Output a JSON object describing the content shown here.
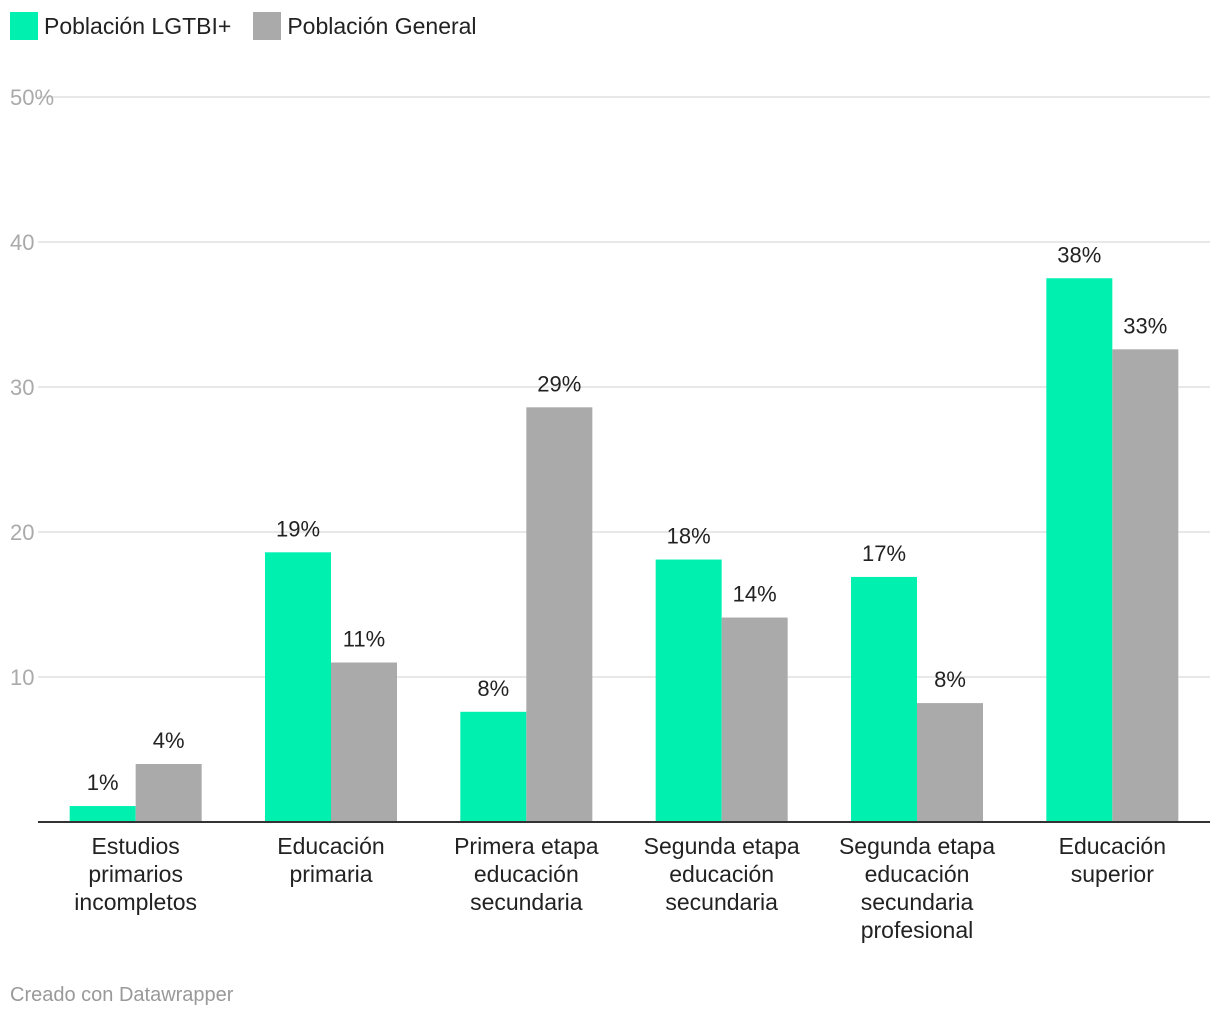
{
  "chart_data": {
    "type": "bar",
    "title": "",
    "xlabel": "",
    "ylabel": "",
    "ylim": [
      0,
      50
    ],
    "yticks": [
      {
        "value": 10,
        "label": "10"
      },
      {
        "value": 20,
        "label": "20"
      },
      {
        "value": 30,
        "label": "30"
      },
      {
        "value": 40,
        "label": "40"
      },
      {
        "value": 50,
        "label": "50%"
      }
    ],
    "categories": [
      [
        "Estudios",
        "primarios",
        "incompletos"
      ],
      [
        "Educación",
        "primaria"
      ],
      [
        "Primera etapa",
        "educación",
        "secundaria"
      ],
      [
        "Segunda etapa",
        "educación",
        "secundaria"
      ],
      [
        "Segunda etapa",
        "educación",
        "secundaria",
        "profesional"
      ],
      [
        "Educación",
        "superior"
      ]
    ],
    "series": [
      {
        "name": "Población LGTBI+",
        "color": "#00f0b0",
        "values": [
          1.1,
          18.6,
          7.6,
          18.1,
          16.9,
          37.5
        ],
        "labels": [
          "1%",
          "19%",
          "8%",
          "18%",
          "17%",
          "38%"
        ]
      },
      {
        "name": "Población General",
        "color": "#aaaaaa",
        "values": [
          4.0,
          11.0,
          28.6,
          14.1,
          8.2,
          32.6
        ],
        "labels": [
          "4%",
          "11%",
          "29%",
          "14%",
          "8%",
          "33%"
        ]
      }
    ],
    "gridlines": true,
    "legend_position": "top-left"
  },
  "legend": {
    "lgtbi_label": "Población LGTBI+",
    "general_label": "Población General",
    "lgtbi_color": "#00f0b0",
    "general_color": "#aaaaaa"
  },
  "footer": {
    "credit": "Creado con Datawrapper"
  }
}
